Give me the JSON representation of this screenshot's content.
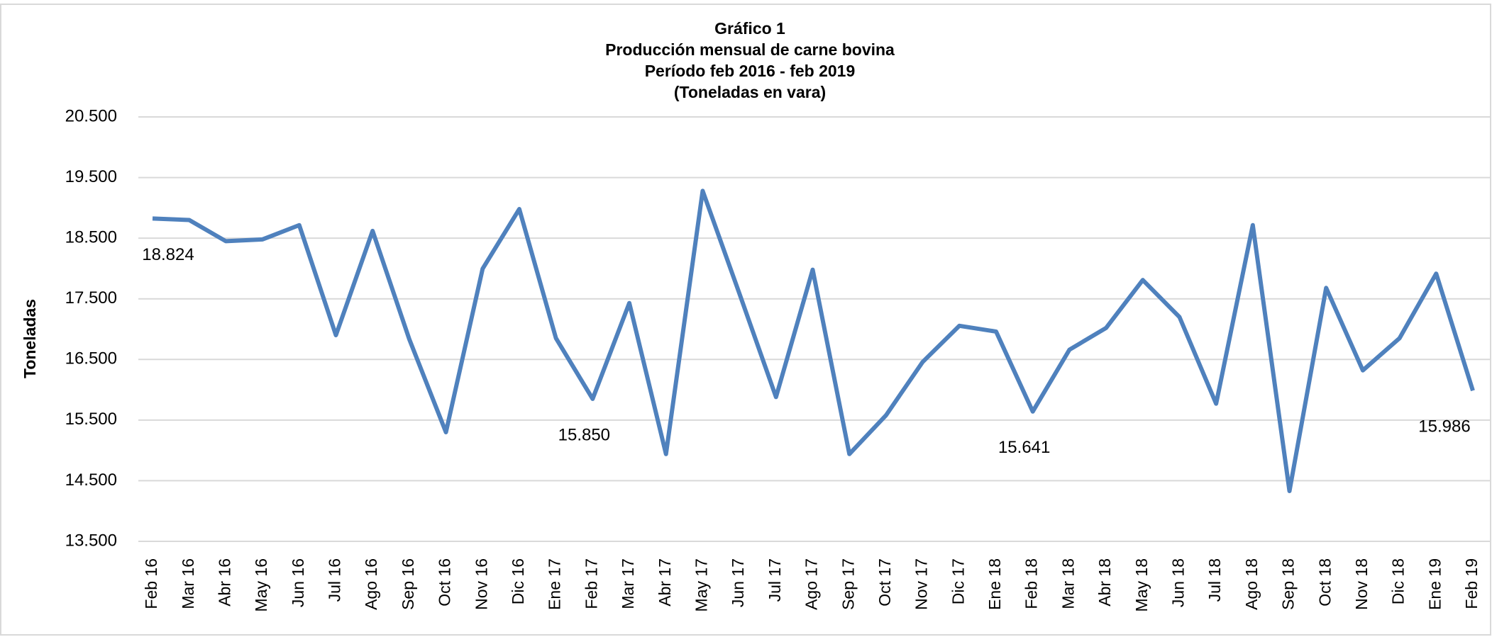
{
  "chart_data": {
    "type": "line",
    "title_lines": [
      "Gráfico 1",
      "Producción mensual de carne bovina",
      "Período feb 2016 -  feb 2019",
      "(Toneladas en vara)"
    ],
    "y_label": "Toneladas",
    "categories": [
      "Feb 16",
      "Mar 16",
      "Abr 16",
      "May 16",
      "Jun 16",
      "Jul 16",
      "Ago 16",
      "Sep 16",
      "Oct 16",
      "Nov 16",
      "Dic 16",
      "Ene 17",
      "Feb 17",
      "Mar 17",
      "Abr  17",
      "May 17",
      "Jun 17",
      "Jul 17",
      "Ago 17",
      "Sep 17",
      "Oct 17",
      "Nov 17",
      "Dic 17",
      "Ene 18",
      "Feb 18",
      "Mar 18",
      "Abr 18",
      "May 18",
      "Jun 18",
      "Jul 18",
      "Ago 18",
      "Sep 18",
      "Oct 18",
      "Nov 18",
      "Dic 18",
      "Ene 19",
      "Feb 19"
    ],
    "series": [
      {
        "color": "#4f81bd",
        "values": [
          18824,
          18800,
          18450,
          18480,
          18715,
          16900,
          18620,
          16835,
          15300,
          17995,
          18980,
          16850,
          15850,
          17430,
          14940,
          19280,
          17590,
          15880,
          17980,
          14940,
          15580,
          16460,
          17055,
          16960,
          15641,
          16660,
          17020,
          17810,
          17200,
          15770,
          18715,
          14330,
          17680,
          16320,
          16850,
          17915,
          15986
        ],
        "value_labels": [
          "18.824",
          null,
          null,
          null,
          null,
          null,
          null,
          null,
          null,
          null,
          null,
          null,
          "15.850",
          null,
          null,
          null,
          null,
          null,
          null,
          null,
          null,
          null,
          null,
          null,
          "15.641",
          null,
          null,
          null,
          null,
          null,
          null,
          null,
          null,
          null,
          null,
          null,
          "15.986"
        ]
      }
    ],
    "ylim": [
      13500,
      20500
    ],
    "yticks": [
      {
        "value": 13500,
        "label": "13.500"
      },
      {
        "value": 14500,
        "label": "14.500"
      },
      {
        "value": 15500,
        "label": "15.500"
      },
      {
        "value": 16500,
        "label": "16.500"
      },
      {
        "value": 17500,
        "label": "17.500"
      },
      {
        "value": 18500,
        "label": "18.500"
      },
      {
        "value": 19500,
        "label": "19.500"
      },
      {
        "value": 20500,
        "label": "20.500"
      }
    ],
    "grid": true
  }
}
